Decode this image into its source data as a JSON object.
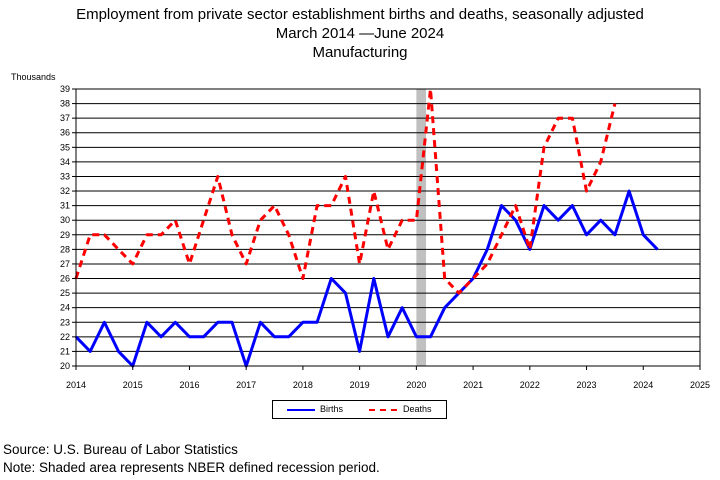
{
  "title_lines": [
    "Employment from private sector establishment births and deaths, seasonally adjusted",
    "March 2014 —June 2024",
    "Manufacturing"
  ],
  "footer_source": "Source: U.S. Bureau of Labor Statistics",
  "footer_note": "Note: Shaded area represents NBER defined recession period.",
  "colors": {
    "births": "#0000ff",
    "deaths": "#ff0000",
    "recession": "#c0c0c0"
  },
  "chart_data": {
    "type": "line",
    "ylabel": "Thousands",
    "xlim": [
      2014,
      2025
    ],
    "ylim": [
      20,
      39
    ],
    "x_ticks": [
      "2014",
      "2015",
      "2016",
      "2017",
      "2018",
      "2019",
      "2020",
      "2021",
      "2022",
      "2023",
      "2024",
      "2025"
    ],
    "y_ticks": [
      20,
      21,
      22,
      23,
      24,
      25,
      26,
      27,
      28,
      29,
      30,
      31,
      32,
      33,
      34,
      35,
      36,
      37,
      38,
      39
    ],
    "grid": "horizontal",
    "legend_position": "bottom-center",
    "recession_shading": {
      "start": 2020.0,
      "end": 2020.17
    },
    "series": [
      {
        "name": "Births",
        "style": "solid",
        "x": [
          2014.0,
          2014.25,
          2014.5,
          2014.75,
          2015.0,
          2015.25,
          2015.5,
          2015.75,
          2016.0,
          2016.25,
          2016.5,
          2016.75,
          2017.0,
          2017.25,
          2017.5,
          2017.75,
          2018.0,
          2018.25,
          2018.5,
          2018.75,
          2019.0,
          2019.25,
          2019.5,
          2019.75,
          2020.0,
          2020.25,
          2020.5,
          2020.75,
          2021.0,
          2021.25,
          2021.5,
          2021.75,
          2022.0,
          2022.25,
          2022.5,
          2022.75,
          2023.0,
          2023.25,
          2023.5,
          2023.75,
          2024.0,
          2024.25
        ],
        "y": [
          22,
          21,
          23,
          21,
          20,
          23,
          22,
          23,
          22,
          22,
          23,
          23,
          20,
          23,
          22,
          22,
          23,
          23,
          26,
          25,
          21,
          26,
          22,
          24,
          22,
          22,
          24,
          25,
          26,
          28,
          31,
          30,
          28,
          31,
          30,
          31,
          29,
          30,
          29,
          32,
          29,
          28
        ]
      },
      {
        "name": "Deaths",
        "style": "dashed",
        "x": [
          2014.0,
          2014.25,
          2014.5,
          2014.75,
          2015.0,
          2015.25,
          2015.5,
          2015.75,
          2016.0,
          2016.25,
          2016.5,
          2016.75,
          2017.0,
          2017.25,
          2017.5,
          2017.75,
          2018.0,
          2018.25,
          2018.5,
          2018.75,
          2019.0,
          2019.25,
          2019.5,
          2019.75,
          2020.0,
          2020.25,
          2020.5,
          2020.75,
          2021.0,
          2021.25,
          2021.5,
          2021.75,
          2022.0,
          2022.25,
          2022.5,
          2022.75,
          2023.0,
          2023.25,
          2023.5
        ],
        "y": [
          26,
          29,
          29,
          28,
          27,
          29,
          29,
          30,
          27,
          30,
          33,
          29,
          27,
          30,
          31,
          29,
          26,
          31,
          31,
          33,
          27,
          32,
          28,
          30,
          30,
          39,
          26,
          25,
          26,
          27,
          29,
          31,
          28,
          35,
          37,
          37,
          32,
          34,
          38
        ]
      }
    ]
  }
}
